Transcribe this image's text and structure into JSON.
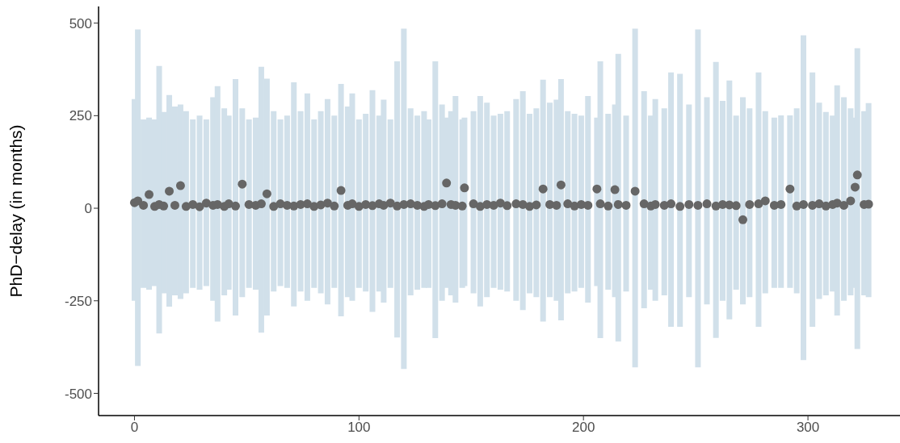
{
  "chart_data": {
    "type": "scatter",
    "ylabel": "PhD−delay (in months)",
    "color": "#666666",
    "marker": "circle",
    "xlim": [
      -16,
      341
    ],
    "xticks": [
      0,
      100,
      200,
      300
    ],
    "ylim": [
      -560,
      545
    ],
    "yticks": [
      -500,
      -250,
      0,
      250,
      500
    ],
    "x": [
      0,
      1.5,
      4,
      6.5,
      9,
      11,
      13,
      15.5,
      18,
      20.5,
      23,
      26,
      29,
      32,
      35,
      37,
      40,
      42,
      45,
      48,
      51,
      54,
      56.5,
      59,
      62,
      65,
      68,
      71,
      74,
      77,
      80,
      83,
      86,
      89,
      92,
      95,
      97,
      100,
      103,
      106,
      109,
      111,
      114,
      117,
      120,
      123,
      126,
      129,
      131,
      134,
      137,
      139,
      141,
      143,
      146,
      147,
      151,
      154,
      157,
      160,
      163,
      166,
      170,
      173,
      176,
      179,
      182,
      185,
      188,
      190,
      193,
      196,
      199,
      202,
      206,
      207.5,
      211,
      214,
      215.5,
      219,
      223,
      227,
      230,
      232,
      236,
      239,
      243,
      247,
      251,
      255,
      259,
      262,
      265,
      268,
      271,
      274,
      278,
      281,
      285,
      288,
      292,
      295,
      298,
      302,
      305,
      308,
      311,
      313,
      316,
      319,
      321,
      322,
      325,
      327
    ],
    "values": [
      15,
      20,
      8,
      37,
      5,
      10,
      6,
      46,
      8,
      61,
      5,
      10,
      4,
      14,
      8,
      10,
      5,
      12,
      6,
      65,
      10,
      8,
      12,
      39,
      5,
      12,
      8,
      6,
      10,
      12,
      5,
      9,
      14,
      6,
      48,
      8,
      12,
      5,
      10,
      7,
      12,
      8,
      14,
      6,
      10,
      12,
      8,
      5,
      10,
      7,
      12,
      68,
      10,
      8,
      6,
      55,
      12,
      5,
      10,
      8,
      14,
      7,
      12,
      10,
      5,
      9,
      52,
      10,
      8,
      63,
      12,
      6,
      10,
      8,
      52,
      12,
      6,
      50,
      10,
      8,
      46,
      12,
      6,
      10,
      8,
      12,
      5,
      10,
      8,
      12,
      6,
      10,
      9,
      7,
      -31,
      10,
      12,
      20,
      8,
      10,
      52,
      6,
      10,
      8,
      12,
      6,
      10,
      14,
      8,
      20,
      57,
      90,
      10,
      11
    ],
    "errors": [
      [
        -250,
        295
      ],
      [
        -426,
        483
      ],
      [
        -215,
        240
      ],
      [
        -220,
        245
      ],
      [
        -210,
        240
      ],
      [
        -338,
        384
      ],
      [
        -230,
        260
      ],
      [
        -266,
        306
      ],
      [
        -235,
        275
      ],
      [
        -245,
        280
      ],
      [
        -230,
        262
      ],
      [
        -215,
        240
      ],
      [
        -220,
        250
      ],
      [
        -210,
        240
      ],
      [
        -250,
        300
      ],
      [
        -306,
        330
      ],
      [
        -235,
        270
      ],
      [
        -220,
        250
      ],
      [
        -290,
        349
      ],
      [
        -240,
        270
      ],
      [
        -215,
        240
      ],
      [
        -220,
        245
      ],
      [
        -336,
        382
      ],
      [
        -290,
        350
      ],
      [
        -225,
        262
      ],
      [
        -210,
        240
      ],
      [
        -215,
        250
      ],
      [
        -265,
        340
      ],
      [
        -225,
        262
      ],
      [
        -250,
        310
      ],
      [
        -215,
        240
      ],
      [
        -230,
        262
      ],
      [
        -260,
        295
      ],
      [
        -215,
        250
      ],
      [
        -292,
        336
      ],
      [
        -240,
        275
      ],
      [
        -250,
        310
      ],
      [
        -215,
        240
      ],
      [
        -225,
        255
      ],
      [
        -280,
        319
      ],
      [
        -225,
        250
      ],
      [
        -255,
        293
      ],
      [
        -215,
        240
      ],
      [
        -349,
        397
      ],
      [
        -434,
        485
      ],
      [
        -235,
        270
      ],
      [
        -220,
        250
      ],
      [
        -215,
        262
      ],
      [
        -215,
        240
      ],
      [
        -351,
        397
      ],
      [
        -250,
        280
      ],
      [
        -215,
        245
      ],
      [
        -235,
        262
      ],
      [
        -255,
        303
      ],
      [
        -215,
        240
      ],
      [
        -210,
        245
      ],
      [
        -230,
        262
      ],
      [
        -265,
        303
      ],
      [
        -240,
        285
      ],
      [
        -215,
        250
      ],
      [
        -220,
        255
      ],
      [
        -225,
        262
      ],
      [
        -250,
        295
      ],
      [
        -275,
        316
      ],
      [
        -230,
        255
      ],
      [
        -240,
        270
      ],
      [
        -306,
        347
      ],
      [
        -240,
        285
      ],
      [
        -250,
        293
      ],
      [
        -303,
        349
      ],
      [
        -230,
        262
      ],
      [
        -225,
        255
      ],
      [
        -215,
        250
      ],
      [
        -255,
        303
      ],
      [
        -210,
        245
      ],
      [
        -351,
        397
      ],
      [
        -220,
        255
      ],
      [
        -240,
        280
      ],
      [
        -360,
        417
      ],
      [
        -225,
        250
      ],
      [
        -430,
        485
      ],
      [
        -270,
        316
      ],
      [
        -220,
        250
      ],
      [
        -250,
        295
      ],
      [
        -235,
        270
      ],
      [
        -320,
        367
      ],
      [
        -320,
        363
      ],
      [
        -240,
        280
      ],
      [
        -430,
        483
      ],
      [
        -260,
        300
      ],
      [
        -350,
        395
      ],
      [
        -250,
        290
      ],
      [
        -300,
        345
      ],
      [
        -220,
        250
      ],
      [
        -260,
        300
      ],
      [
        -240,
        270
      ],
      [
        -320,
        367
      ],
      [
        -230,
        262
      ],
      [
        -215,
        245
      ],
      [
        -215,
        251
      ],
      [
        -215,
        251
      ],
      [
        -230,
        270
      ],
      [
        -410,
        467
      ],
      [
        -320,
        367
      ],
      [
        -245,
        285
      ],
      [
        -235,
        260
      ],
      [
        -225,
        250
      ],
      [
        -290,
        332
      ],
      [
        -250,
        300
      ],
      [
        -235,
        270
      ],
      [
        -215,
        245
      ],
      [
        -380,
        432
      ],
      [
        -235,
        262
      ],
      [
        -240,
        284
      ]
    ]
  }
}
